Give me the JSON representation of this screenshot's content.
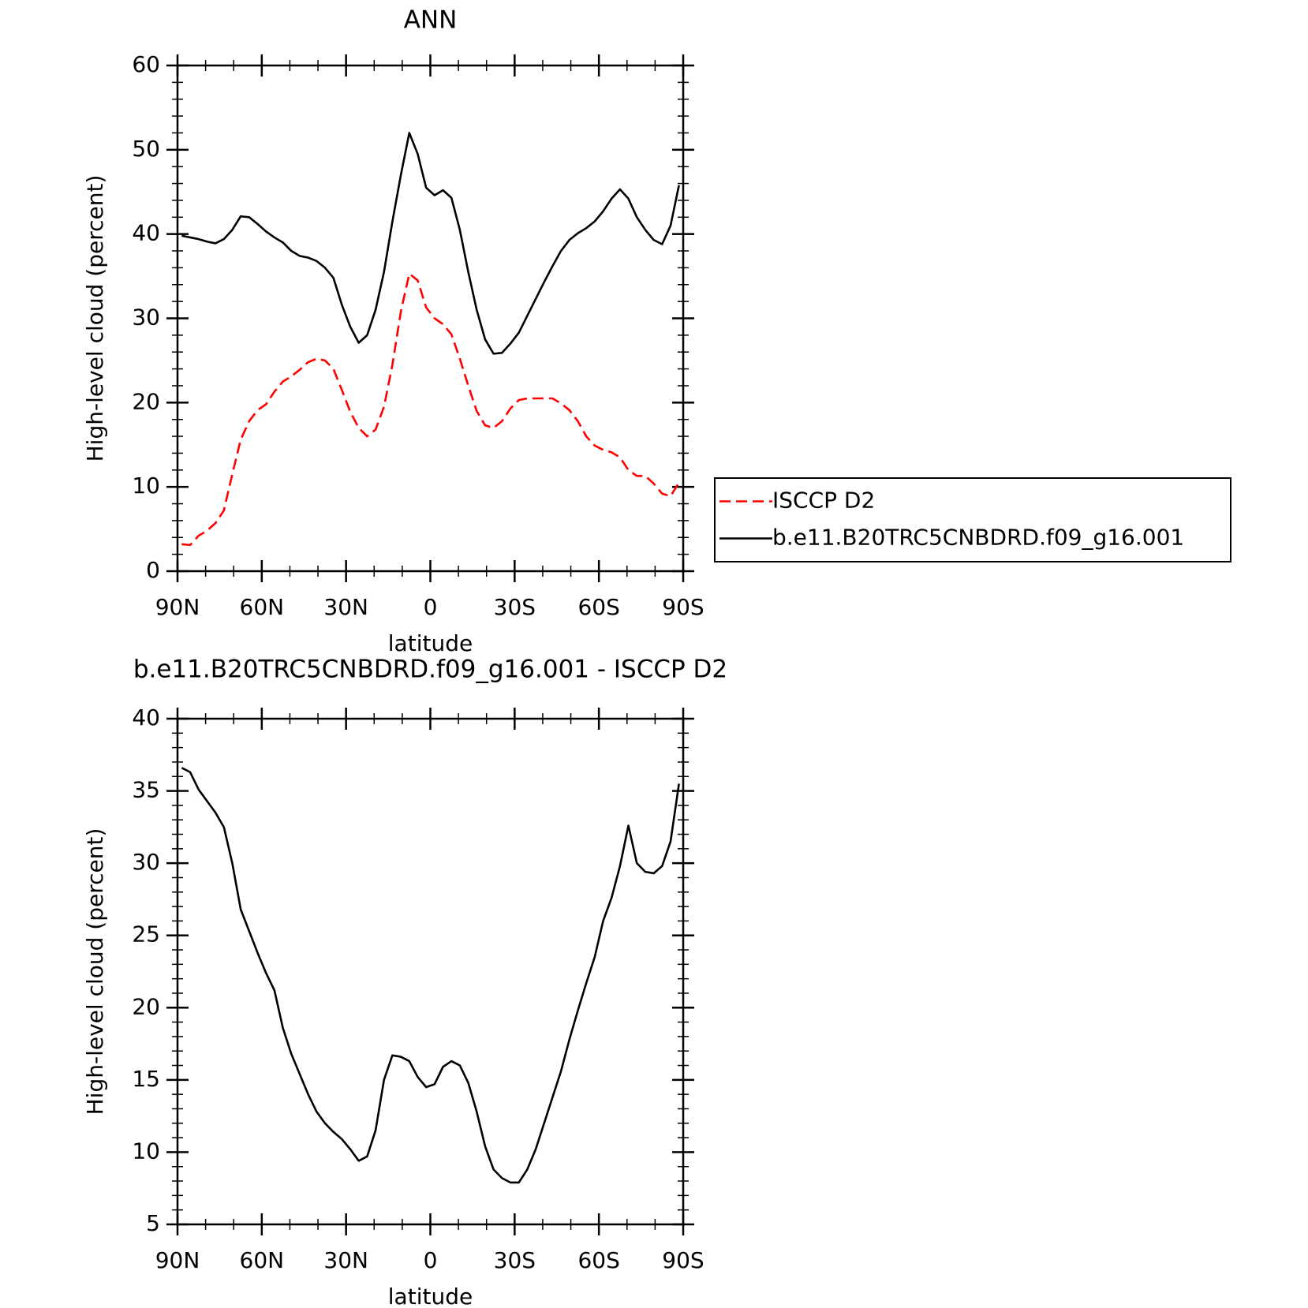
{
  "chart_data": [
    {
      "type": "line",
      "title": "ANN",
      "xlabel": "latitude",
      "ylabel": "High-level cloud (percent)",
      "xlim": [
        90,
        -90
      ],
      "ylim": [
        0,
        60
      ],
      "xticks": [
        {
          "value": 90,
          "label": "90N"
        },
        {
          "value": 60,
          "label": "60N"
        },
        {
          "value": 30,
          "label": "30N"
        },
        0,
        {
          "value": -30,
          "label": "30S"
        },
        {
          "value": -60,
          "label": "60S"
        },
        {
          "value": -90,
          "label": "90S"
        }
      ],
      "yticks": [
        0,
        10,
        20,
        30,
        40,
        50,
        60
      ],
      "legend": "outside-right",
      "x": [
        88.5,
        85.5,
        82.5,
        79.5,
        76.5,
        73.5,
        70.5,
        67.5,
        64.5,
        61.5,
        58.5,
        55.5,
        52.5,
        49.5,
        46.5,
        43.5,
        40.5,
        37.5,
        34.5,
        31.5,
        28.5,
        25.5,
        22.5,
        19.5,
        16.5,
        13.5,
        10.5,
        7.5,
        4.5,
        1.5,
        -1.5,
        -4.5,
        -7.5,
        -10.5,
        -13.5,
        -16.5,
        -19.5,
        -22.5,
        -25.5,
        -28.5,
        -31.5,
        -34.5,
        -37.5,
        -40.5,
        -43.5,
        -46.5,
        -49.5,
        -52.5,
        -55.5,
        -58.5,
        -61.5,
        -64.5,
        -67.5,
        -70.5,
        -73.5,
        -76.5,
        -79.5,
        -82.5,
        -85.5,
        -88.5
      ],
      "series": [
        {
          "name": "ISCCP D2",
          "color": "#ff0000",
          "dash": "dashed",
          "values": [
            3.2,
            3.1,
            4.2,
            4.8,
            5.7,
            7.2,
            11.5,
            15.6,
            17.8,
            19.1,
            19.8,
            21.3,
            22.5,
            23.1,
            23.9,
            24.8,
            25.2,
            25.0,
            24.0,
            21.5,
            18.9,
            17.0,
            16.0,
            16.8,
            19.5,
            24.5,
            30.8,
            35.3,
            34.5,
            31.3,
            30.0,
            29.3,
            28.1,
            25.2,
            22.0,
            19.0,
            17.3,
            17.0,
            17.8,
            19.3,
            20.3,
            20.5,
            20.5,
            20.5,
            20.5,
            19.9,
            19.1,
            17.8,
            16.0,
            14.9,
            14.4,
            14.1,
            13.5,
            12.0,
            11.3,
            11.3,
            10.4,
            9.2,
            8.9,
            10.5
          ]
        },
        {
          "name": "b.e11.B20TRC5CNBDRD.f09_g16.001",
          "color": "#000000",
          "dash": "solid",
          "values": [
            39.8,
            39.6,
            39.4,
            39.1,
            38.9,
            39.4,
            40.5,
            42.1,
            42.0,
            41.2,
            40.3,
            39.6,
            39.0,
            38.0,
            37.4,
            37.2,
            36.8,
            36.0,
            34.8,
            31.6,
            29.0,
            27.1,
            28.0,
            31.0,
            35.5,
            41.5,
            47.0,
            52.0,
            49.5,
            45.5,
            44.6,
            45.2,
            44.3,
            40.5,
            35.5,
            31.0,
            27.5,
            25.8,
            25.9,
            27.0,
            28.3,
            30.3,
            32.3,
            34.3,
            36.2,
            38.0,
            39.3,
            40.1,
            40.7,
            41.5,
            42.7,
            44.2,
            45.3,
            44.2,
            42.0,
            40.5,
            39.3,
            38.8,
            41.0,
            45.8
          ]
        }
      ]
    },
    {
      "type": "line",
      "title": "b.e11.B20TRC5CNBDRD.f09_g16.001 - ISCCP D2",
      "xlabel": "latitude",
      "ylabel": "High-level cloud (percent)",
      "xlim": [
        90,
        -90
      ],
      "ylim": [
        5,
        40
      ],
      "xticks": [
        {
          "value": 90,
          "label": "90N"
        },
        {
          "value": 60,
          "label": "60N"
        },
        {
          "value": 30,
          "label": "30N"
        },
        0,
        {
          "value": -30,
          "label": "30S"
        },
        {
          "value": -60,
          "label": "60S"
        },
        {
          "value": -90,
          "label": "90S"
        }
      ],
      "yticks": [
        5,
        10,
        15,
        20,
        25,
        30,
        35,
        40
      ],
      "x": [
        88.5,
        85.5,
        82.5,
        79.5,
        76.5,
        73.5,
        70.5,
        67.5,
        64.5,
        61.5,
        58.5,
        55.5,
        52.5,
        49.5,
        46.5,
        43.5,
        40.5,
        37.5,
        34.5,
        31.5,
        28.5,
        25.5,
        22.5,
        19.5,
        16.5,
        13.5,
        10.5,
        7.5,
        4.5,
        1.5,
        -1.5,
        -4.5,
        -7.5,
        -10.5,
        -13.5,
        -16.5,
        -19.5,
        -22.5,
        -25.5,
        -28.5,
        -31.5,
        -34.5,
        -37.5,
        -40.5,
        -43.5,
        -46.5,
        -49.5,
        -52.5,
        -55.5,
        -58.5,
        -61.5,
        -64.5,
        -67.5,
        -70.5,
        -73.5,
        -76.5,
        -79.5,
        -82.5,
        -85.5,
        -88.5
      ],
      "series": [
        {
          "color": "#000000",
          "dash": "solid",
          "values": [
            36.6,
            36.3,
            35.1,
            34.3,
            33.5,
            32.5,
            30.0,
            26.8,
            25.3,
            23.8,
            22.4,
            21.2,
            18.6,
            16.8,
            15.4,
            14.0,
            12.8,
            12.0,
            11.4,
            10.9,
            10.2,
            9.4,
            9.7,
            11.5,
            15.0,
            16.7,
            16.6,
            16.3,
            15.2,
            14.5,
            14.7,
            15.9,
            16.3,
            16.0,
            14.8,
            12.8,
            10.4,
            8.8,
            8.2,
            7.9,
            7.9,
            8.8,
            10.2,
            12.0,
            13.8,
            15.6,
            17.8,
            19.8,
            21.7,
            23.5,
            26.0,
            27.6,
            29.8,
            32.6,
            30.0,
            29.4,
            29.3,
            29.8,
            31.5,
            35.5
          ]
        }
      ]
    }
  ]
}
